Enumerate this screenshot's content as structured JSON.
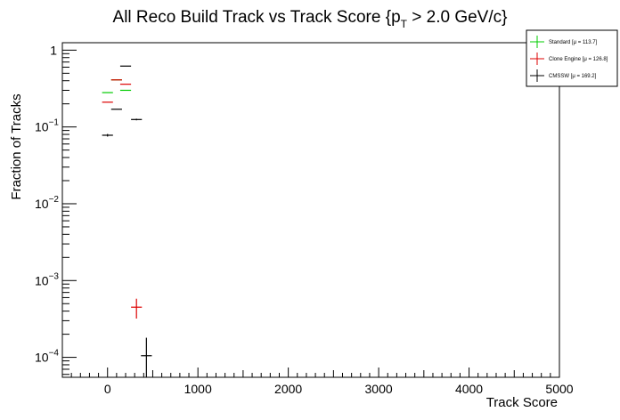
{
  "chart_data": {
    "type": "scatter",
    "title_main": "All Reco Build Track vs Track Score {p",
    "title_sub": "T",
    "title_end": " > 2.0 GeV/c}",
    "xlabel": "Track Score",
    "ylabel": "Fraction of Tracks",
    "xlim": [
      -500,
      5000
    ],
    "ylim": [
      5.5e-05,
      1.25
    ],
    "y_scale": "log",
    "grid": false,
    "legend_position": "top-right",
    "x_ticks": [
      {
        "value": 0,
        "label": "0"
      },
      {
        "value": 1000,
        "label": "1000"
      },
      {
        "value": 2000,
        "label": "2000"
      },
      {
        "value": 3000,
        "label": "3000"
      },
      {
        "value": 4000,
        "label": "4000"
      },
      {
        "value": 5000,
        "label": "5000"
      }
    ],
    "y_ticks": [
      {
        "value": 1,
        "base": "1",
        "exp": ""
      },
      {
        "value": 0.1,
        "base": "10",
        "exp": "−1"
      },
      {
        "value": 0.01,
        "base": "10",
        "exp": "−2"
      },
      {
        "value": 0.001,
        "base": "10",
        "exp": "−3"
      },
      {
        "value": 0.0001,
        "base": "10",
        "exp": "−4"
      }
    ],
    "series": [
      {
        "name": "Standard  [μ = 113.7]",
        "color": "#00cc00",
        "points": [
          {
            "x": 0,
            "y": 0.28,
            "xerr": 60,
            "ylo": 0.28,
            "yhi": 0.28
          },
          {
            "x": 100,
            "y": 0.41,
            "xerr": 60,
            "ylo": 0.41,
            "yhi": 0.41
          },
          {
            "x": 200,
            "y": 0.3,
            "xerr": 60,
            "ylo": 0.3,
            "yhi": 0.3
          }
        ]
      },
      {
        "name": "Clone Engine  [μ = 126.8]",
        "color": "#dd0000",
        "points": [
          {
            "x": 0,
            "y": 0.21,
            "xerr": 60,
            "ylo": 0.21,
            "yhi": 0.21
          },
          {
            "x": 100,
            "y": 0.41,
            "xerr": 60,
            "ylo": 0.41,
            "yhi": 0.41
          },
          {
            "x": 200,
            "y": 0.36,
            "xerr": 60,
            "ylo": 0.36,
            "yhi": 0.36
          },
          {
            "x": 320,
            "y": 0.00045,
            "xerr": 60,
            "ylo": 0.00032,
            "yhi": 0.00058
          }
        ]
      },
      {
        "name": "CMSSW  [μ = 169.2]",
        "color": "#000000",
        "points": [
          {
            "x": 0,
            "y": 0.078,
            "xerr": 60,
            "ylo": 0.075,
            "yhi": 0.081
          },
          {
            "x": 100,
            "y": 0.17,
            "xerr": 60,
            "ylo": 0.17,
            "yhi": 0.17
          },
          {
            "x": 200,
            "y": 0.62,
            "xerr": 60,
            "ylo": 0.62,
            "yhi": 0.62
          },
          {
            "x": 320,
            "y": 0.125,
            "xerr": 60,
            "ylo": 0.122,
            "yhi": 0.128
          },
          {
            "x": 430,
            "y": 0.000105,
            "xerr": 60,
            "ylo": 5.5e-05,
            "yhi": 0.00018
          }
        ]
      }
    ]
  }
}
